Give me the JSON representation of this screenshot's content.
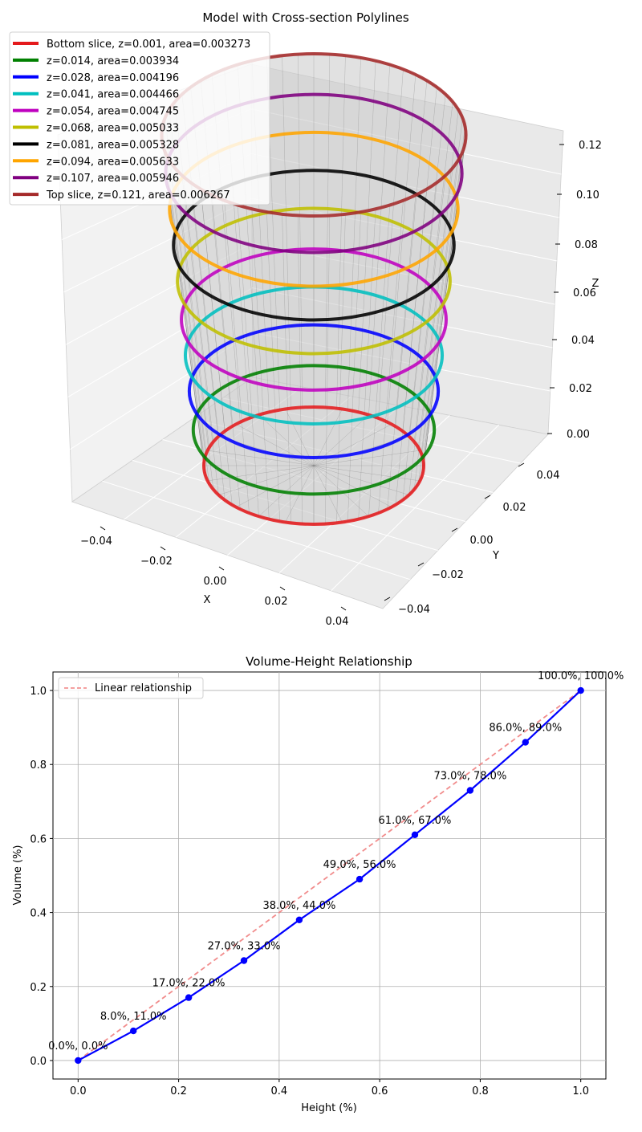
{
  "chart_data": [
    {
      "type": "3d-line",
      "title": "Model with Cross-section Polylines",
      "xlabel": "X",
      "ylabel": "Y",
      "zlabel": "Z",
      "xlim": [
        -0.05,
        0.05
      ],
      "ylim": [
        -0.05,
        0.05
      ],
      "zlim": [
        0,
        0.125
      ],
      "x_ticks": [
        "−0.04",
        "−0.02",
        "0.00",
        "0.02",
        "0.04"
      ],
      "y_ticks": [
        "−0.04",
        "−0.02",
        "0.00",
        "0.02",
        "0.04"
      ],
      "z_ticks": [
        "0.00",
        "0.02",
        "0.04",
        "0.06",
        "0.08",
        "0.10",
        "0.12"
      ],
      "grid": true,
      "legend_position": "top-left",
      "series": [
        {
          "name": "Bottom slice, z=0.001, area=0.003273",
          "z": 0.001,
          "area": 0.003273,
          "color": "#e41a1c"
        },
        {
          "name": "z=0.014, area=0.003934",
          "z": 0.014,
          "area": 0.003934,
          "color": "#008000"
        },
        {
          "name": "z=0.028, area=0.004196",
          "z": 0.028,
          "area": 0.004196,
          "color": "#0000ff"
        },
        {
          "name": "z=0.041, area=0.004466",
          "z": 0.041,
          "area": 0.004466,
          "color": "#00bfbf"
        },
        {
          "name": "z=0.054, area=0.004745",
          "z": 0.054,
          "area": 0.004745,
          "color": "#bf00bf"
        },
        {
          "name": "z=0.068, area=0.005033",
          "z": 0.068,
          "area": 0.005033,
          "color": "#bfbf00"
        },
        {
          "name": "z=0.081, area=0.005328",
          "z": 0.081,
          "area": 0.005328,
          "color": "#000000"
        },
        {
          "name": "z=0.094, area=0.005633",
          "z": 0.094,
          "area": 0.005633,
          "color": "#ffa500"
        },
        {
          "name": "z=0.107, area=0.005946",
          "z": 0.107,
          "area": 0.005946,
          "color": "#800080"
        },
        {
          "name": "Top slice, z=0.121, area=0.006267",
          "z": 0.121,
          "area": 0.006267,
          "color": "#a52a2a"
        }
      ]
    },
    {
      "type": "line",
      "title": "Volume-Height Relationship",
      "xlabel": "Height (%)",
      "ylabel": "Volume (%)",
      "xlim": [
        -0.05,
        1.05
      ],
      "ylim": [
        -0.05,
        1.05
      ],
      "x_ticks": [
        "0.0",
        "0.2",
        "0.4",
        "0.6",
        "0.8",
        "1.0"
      ],
      "y_ticks": [
        "0.0",
        "0.2",
        "0.4",
        "0.6",
        "0.8",
        "1.0"
      ],
      "grid": true,
      "legend_position": "top-left",
      "series": [
        {
          "name": "",
          "color": "#0000ff",
          "x": [
            0.0,
            0.11,
            0.22,
            0.33,
            0.44,
            0.56,
            0.67,
            0.78,
            0.89,
            1.0
          ],
          "y": [
            0.0,
            0.08,
            0.17,
            0.27,
            0.38,
            0.49,
            0.61,
            0.73,
            0.86,
            1.0
          ]
        },
        {
          "name": "Linear relationship",
          "color": "#f08080",
          "style": "dashed",
          "x": [
            0.0,
            1.0
          ],
          "y": [
            0.0,
            1.0
          ]
        }
      ],
      "annotations": [
        "0.0%, 0.0%",
        "8.0%, 11.0%",
        "17.0%, 22.0%",
        "27.0%, 33.0%",
        "38.0%, 44.0%",
        "49.0%, 56.0%",
        "61.0%, 67.0%",
        "73.0%, 78.0%",
        "86.0%, 89.0%",
        "100.0%, 100.0%"
      ]
    }
  ]
}
